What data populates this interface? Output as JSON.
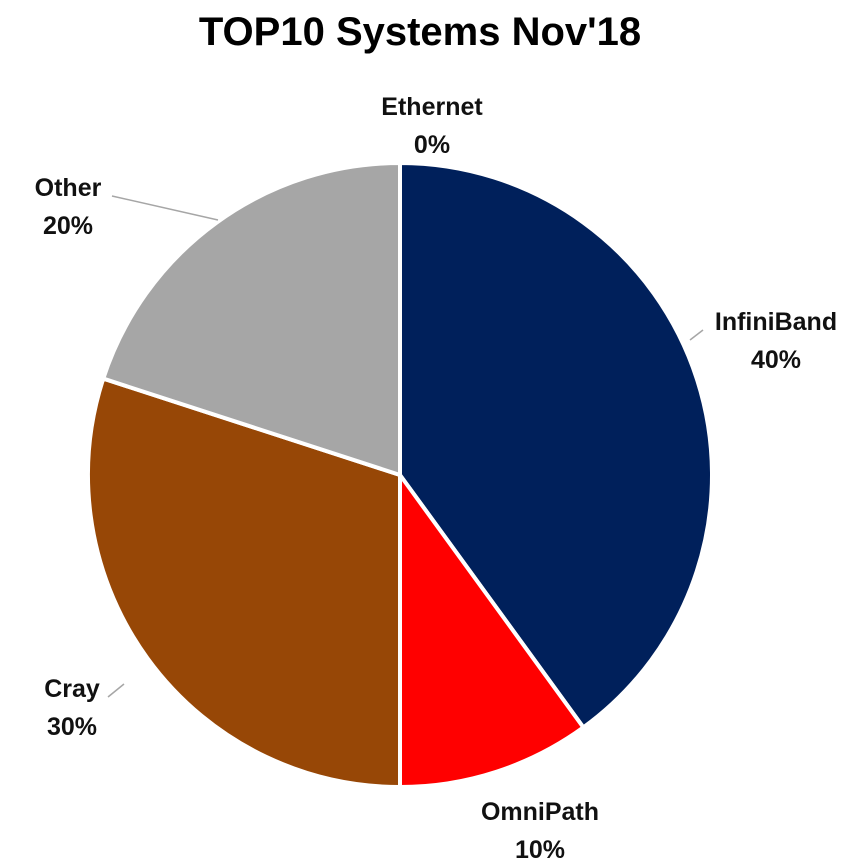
{
  "chart_data": {
    "type": "pie",
    "title": "TOP10 Systems Nov'18",
    "slices": [
      {
        "label": "Ethernet",
        "value": 0,
        "display": "0%",
        "color": "#4472C4"
      },
      {
        "label": "InfiniBand",
        "value": 40,
        "display": "40%",
        "color": "#00205B"
      },
      {
        "label": "OmniPath",
        "value": 10,
        "display": "10%",
        "color": "#FF0000"
      },
      {
        "label": "Cray",
        "value": 30,
        "display": "30%",
        "color": "#974706"
      },
      {
        "label": "Other",
        "value": 20,
        "display": "20%",
        "color": "#A6A6A6"
      }
    ],
    "start": "12 o'clock",
    "direction": "clockwise",
    "legend": "none",
    "data_labels": "outside with leader lines"
  }
}
